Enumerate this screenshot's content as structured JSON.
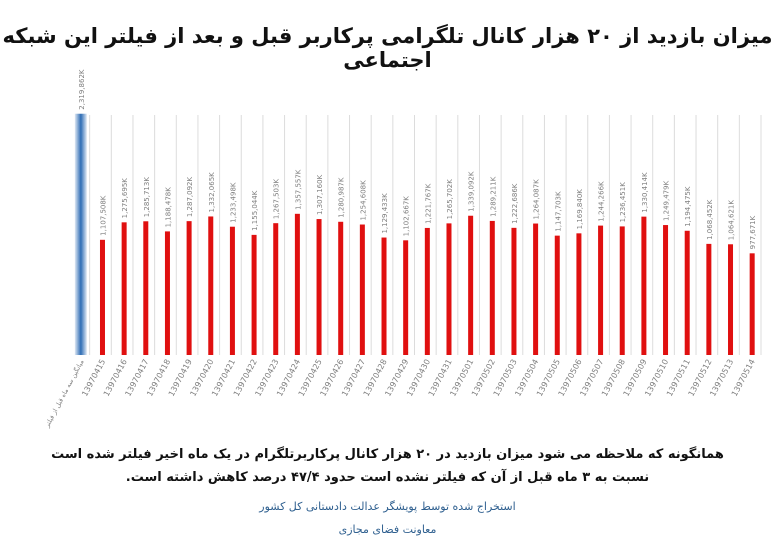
{
  "chart_data": {
    "type": "bar",
    "title": "میزان بازدید از ۲۰ هزار کانال تلگرامی پرکاربر قبل و بعد از فیلتر این شبکه اجتماعی",
    "categories": [
      "میانگین سه ماه قبل از فیلتر",
      "13970415",
      "13970416",
      "13970417",
      "13970418",
      "13970419",
      "13970420",
      "13970421",
      "13970422",
      "13970423",
      "13970424",
      "13970425",
      "13970426",
      "13970427",
      "13970428",
      "13970429",
      "13970430",
      "13970431",
      "13970501",
      "13970502",
      "13970503",
      "13970504",
      "13970505",
      "13970506",
      "13970507",
      "13970508",
      "13970509",
      "13970510",
      "13970511",
      "13970512",
      "13970513",
      "13970514"
    ],
    "values": [
      2319862,
      1107508,
      1275695,
      1285713,
      1188478,
      1287092,
      1332065,
      1233498,
      1155044,
      1267503,
      1357557,
      1307160,
      1280987,
      1254608,
      1129433,
      1102667,
      1221767,
      1265702,
      1339092,
      1289211,
      1222686,
      1264087,
      1147703,
      1169840,
      1244266,
      1236451,
      1330414,
      1249479,
      1194475,
      1068452,
      1064621,
      977671
    ],
    "data_labels": [
      "2,319,862K",
      "1,107,508K",
      "1,275,695K",
      "1,285,713K",
      "1,188,478K",
      "1,287,092K",
      "1,332,065K",
      "1,233,498K",
      "1,155,044K",
      "1,267,503K",
      "1,357,557K",
      "1,307,160K",
      "1,280,987K",
      "1,254,608K",
      "1,129,433K",
      "1,102,667K",
      "1,221,767K",
      "1,265,702K",
      "1,339,092K",
      "1,289,211K",
      "1,222,686K",
      "1,264,087K",
      "1,147,703K",
      "1,169,840K",
      "1,244,266K",
      "1,236,451K",
      "1,330,414K",
      "1,249,479K",
      "1,194,475K",
      "1,068,452K",
      "1,064,621K",
      "977,671K"
    ],
    "ylim": [
      0,
      2500000
    ],
    "grid": true,
    "colors": {
      "first_bar": "#2f6db5",
      "bar": "#e01010",
      "grid": "#dcdcdc",
      "label": "#7f7f7f"
    }
  },
  "notes": {
    "line1": "همانگونه که ملاحظه می شود میزان بازدید در ۲۰ هزار کانال پرکاربرتلگرام در یک ماه اخیر فیلتر شده است",
    "line2": "نسبت به ۳ ماه قبل از آن که فیلتر نشده است حدود ۴۷/۴ درصد کاهش داشته است."
  },
  "credits": {
    "line1": "استخراج شده توسط پویشگر عدالت دادستانی کل کشور",
    "line2": "معاونت فضای مجازی"
  }
}
